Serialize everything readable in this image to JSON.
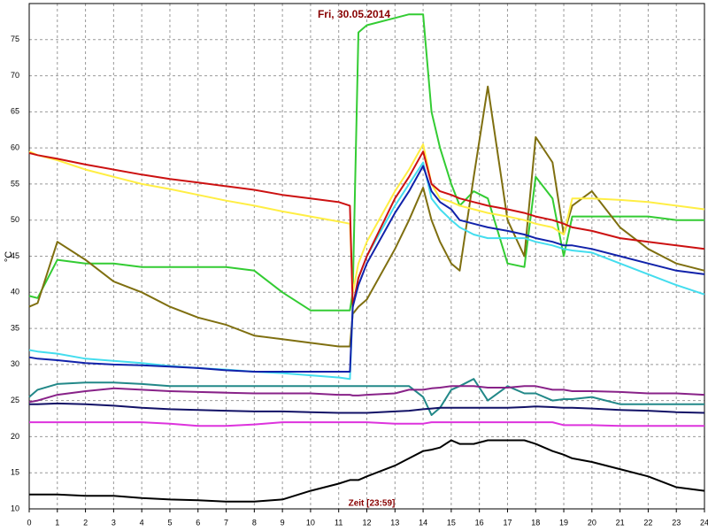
{
  "chart_data": {
    "type": "line",
    "title": "Fri, 30.05.2014",
    "y_label": "°C",
    "x_label": "Zeit [23:59]",
    "x": [
      0,
      0.3,
      1,
      2,
      3,
      4,
      5,
      6,
      7,
      8,
      9,
      10,
      11,
      11.4,
      11.5,
      11.7,
      12,
      13,
      13.5,
      14,
      14.3,
      14.6,
      15,
      15.3,
      15.8,
      16.3,
      17,
      17.6,
      18,
      18.6,
      19,
      19.3,
      20,
      21,
      22,
      23,
      24
    ],
    "xlim": [
      0,
      24
    ],
    "xticks": [
      0,
      1,
      2,
      3,
      4,
      5,
      6,
      7,
      8,
      9,
      10,
      11,
      12,
      13,
      14,
      15,
      16,
      17,
      18,
      19,
      20,
      21,
      22,
      23,
      24
    ],
    "ylim": [
      10,
      80
    ],
    "yticks": [
      10,
      15,
      20,
      25,
      30,
      35,
      40,
      45,
      50,
      55,
      60,
      65,
      70,
      75
    ],
    "grid": true,
    "series": [
      {
        "color": "#33cc33",
        "values": [
          39.5,
          39.2,
          44.5,
          44,
          44,
          43.5,
          43.5,
          43.5,
          43.5,
          43,
          40,
          37.5,
          37.5,
          37.5,
          40,
          76,
          77,
          78,
          78.5,
          78.5,
          65,
          60,
          55,
          52,
          54,
          53,
          44,
          43.5,
          56,
          53,
          45,
          50.5,
          50.5,
          50.5,
          50.5,
          50,
          50
        ]
      },
      {
        "color": "#7f6f10",
        "values": [
          38,
          38.5,
          47,
          44.5,
          41.5,
          40,
          38,
          36.5,
          35.5,
          34,
          33.5,
          33,
          32.5,
          32.5,
          37,
          38,
          39,
          46,
          50,
          54.5,
          50,
          47,
          44,
          43,
          56,
          68.5,
          50,
          45,
          61.5,
          58,
          48,
          52,
          54,
          49,
          46,
          44,
          43
        ]
      },
      {
        "color": "#ffee44",
        "values": [
          59.5,
          59,
          58.3,
          57,
          56,
          55,
          54.3,
          53.5,
          52.7,
          52,
          51.2,
          50.5,
          49.8,
          49.5,
          40,
          44,
          47,
          54,
          57,
          60.5,
          55,
          53,
          52.5,
          52,
          51.5,
          51,
          50.5,
          50,
          49.5,
          49,
          48,
          53,
          53,
          52.8,
          52.5,
          52,
          51.5
        ]
      },
      {
        "color": "#44ddee",
        "values": [
          32,
          31.8,
          31.5,
          30.8,
          30.5,
          30.2,
          29.8,
          29.5,
          29.3,
          29,
          28.8,
          28.5,
          28.2,
          28,
          38,
          42,
          45,
          52,
          55,
          58,
          53,
          51.5,
          50,
          49,
          48,
          47.5,
          47.5,
          47.5,
          47,
          46.5,
          46,
          45.8,
          45.5,
          44,
          42.5,
          41,
          39.7
        ]
      },
      {
        "color": "#cc1111",
        "values": [
          59.3,
          59,
          58.5,
          57.7,
          57,
          56.3,
          55.7,
          55.2,
          54.7,
          54.2,
          53.5,
          53,
          52.5,
          52,
          38,
          42,
          45,
          53,
          56,
          59.5,
          55,
          54,
          53.5,
          53,
          52.5,
          52,
          51.5,
          51,
          50.5,
          50,
          49.5,
          49,
          48.5,
          47.5,
          47,
          46.5,
          46
        ]
      },
      {
        "color": "#1122aa",
        "values": [
          31,
          30.8,
          30.6,
          30.2,
          30,
          29.9,
          29.7,
          29.5,
          29.2,
          29,
          29,
          29,
          29,
          29,
          38,
          41,
          44,
          51,
          54,
          57.5,
          54,
          52.5,
          51.5,
          50,
          49.5,
          49,
          48.5,
          48,
          47.5,
          47,
          46.5,
          46.5,
          46,
          45,
          44,
          43,
          42.5
        ]
      },
      {
        "color": "#228888",
        "values": [
          25.5,
          26.5,
          27.3,
          27.5,
          27.5,
          27.3,
          27,
          27,
          27,
          27,
          27,
          27,
          27,
          27,
          27,
          27,
          27,
          27,
          27,
          25.5,
          23,
          24,
          26.5,
          27,
          28,
          25,
          27,
          26,
          26,
          25,
          25.2,
          25.2,
          25.5,
          24.5,
          24.5,
          24.5,
          24.5
        ]
      },
      {
        "color": "#882288",
        "values": [
          24.8,
          25,
          25.8,
          26.3,
          26.7,
          26.5,
          26.3,
          26.2,
          26.1,
          26,
          26,
          26,
          25.8,
          25.8,
          25.7,
          25.7,
          25.8,
          26,
          26.5,
          26.5,
          26.7,
          26.8,
          27,
          27,
          27,
          26.8,
          26.8,
          27,
          27,
          26.5,
          26.5,
          26.3,
          26.3,
          26.2,
          26,
          26,
          25.8
        ]
      },
      {
        "color": "#111166",
        "values": [
          24.5,
          24.5,
          24.6,
          24.5,
          24.3,
          24,
          23.8,
          23.7,
          23.6,
          23.5,
          23.5,
          23.4,
          23.3,
          23.3,
          23.3,
          23.3,
          23.3,
          23.5,
          23.6,
          23.8,
          23.9,
          24,
          24,
          24,
          24,
          24,
          24,
          24.1,
          24.2,
          24.1,
          24,
          24,
          23.9,
          23.7,
          23.6,
          23.4,
          23.3
        ]
      },
      {
        "color": "#dd33dd",
        "values": [
          22,
          22,
          22,
          22,
          22,
          22,
          21.8,
          21.5,
          21.5,
          21.7,
          22,
          22,
          22,
          22,
          22,
          22,
          22,
          21.8,
          21.8,
          21.8,
          22,
          22,
          22,
          22,
          22,
          22,
          22,
          22,
          22,
          22,
          21.6,
          21.6,
          21.6,
          21.5,
          21.5,
          21.5,
          21.5
        ]
      },
      {
        "color": "#000000",
        "values": [
          12,
          12,
          12,
          11.8,
          11.8,
          11.5,
          11.3,
          11.2,
          11,
          11,
          11.3,
          12.5,
          13.5,
          14,
          14,
          14,
          14.5,
          16,
          17,
          18,
          18.2,
          18.5,
          19.5,
          19,
          19,
          19.5,
          19.5,
          19.5,
          19,
          18,
          17.5,
          17,
          16.5,
          15.5,
          14.5,
          13,
          12.5
        ]
      }
    ]
  }
}
